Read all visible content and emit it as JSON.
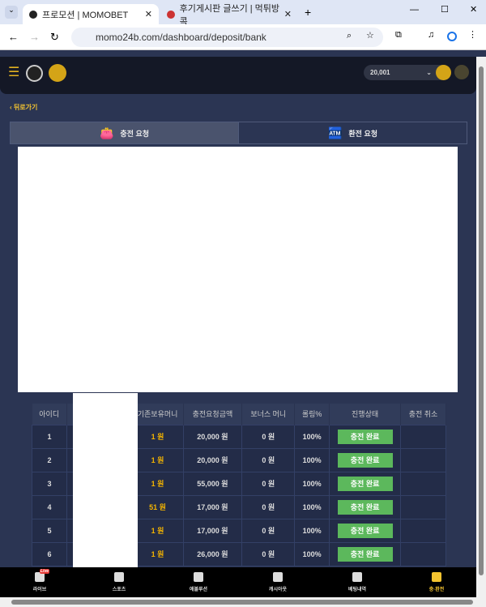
{
  "browser": {
    "tabs": [
      {
        "title": "프로모션 | MOMOBET"
      },
      {
        "title": "후기게시판 글쓰기 | 먹튀방콕"
      }
    ],
    "url": "momo24b.com/dashboard/deposit/bank"
  },
  "header": {
    "balance": "20,001"
  },
  "back_label": "뒤로가기",
  "tabs": [
    {
      "label": "충전 요청"
    },
    {
      "label": "환전 요청"
    }
  ],
  "table": {
    "headers": [
      "아이디",
      "",
      "기존보유머니",
      "충전요청금액",
      "보너스 머니",
      "롤링%",
      "진행상태",
      "충전 취소"
    ],
    "rows": [
      {
        "id": "1",
        "prev": "1 원",
        "amount": "20,000 원",
        "bonus": "0 원",
        "rolling": "100%",
        "status": "충전 완료"
      },
      {
        "id": "2",
        "prev": "1 원",
        "amount": "20,000 원",
        "bonus": "0 원",
        "rolling": "100%",
        "status": "충전 완료"
      },
      {
        "id": "3",
        "prev": "1 원",
        "amount": "55,000 원",
        "bonus": "0 원",
        "rolling": "100%",
        "status": "충전 완료"
      },
      {
        "id": "4",
        "prev": "51 원",
        "amount": "17,000 원",
        "bonus": "0 원",
        "rolling": "100%",
        "status": "충전 완료"
      },
      {
        "id": "5",
        "prev": "1 원",
        "amount": "17,000 원",
        "bonus": "0 원",
        "rolling": "100%",
        "status": "충전 완료"
      },
      {
        "id": "6",
        "prev": "1 원",
        "amount": "26,000 원",
        "bonus": "0 원",
        "rolling": "100%",
        "status": "충전 완료"
      }
    ]
  },
  "bottom_nav": [
    {
      "label": "라이브",
      "badge": "Live"
    },
    {
      "label": "스포츠"
    },
    {
      "label": "에볼루션"
    },
    {
      "label": "캐시아웃"
    },
    {
      "label": "베팅내역"
    },
    {
      "label": "충·환전",
      "active": true
    }
  ],
  "colors": {
    "accent": "#f4c430",
    "success": "#5cb85c",
    "bg": "#2b3553"
  }
}
